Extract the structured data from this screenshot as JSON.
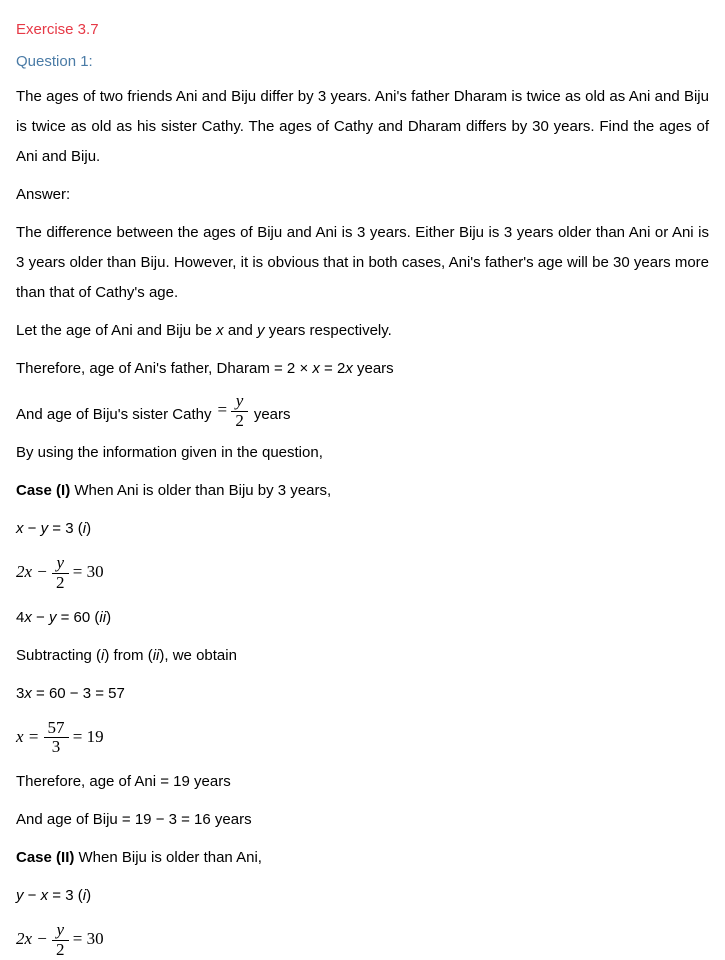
{
  "exercise": "Exercise 3.7",
  "question_label": "Question 1:",
  "question_text": "The ages of two friends Ani and Biju differ by 3 years. Ani's father Dharam is twice as old as Ani and Biju is twice as old as his sister Cathy. The ages of Cathy and Dharam differs by 30 years. Find the ages of Ani and Biju.",
  "answer_label": "Answer:",
  "answer_p1": "The difference between the ages of Biju and Ani is 3 years. Either Biju is 3 years older than Ani or Ani is 3 years older than Biju. However, it is obvious that in both cases, Ani's father's age will be 30 years more than that of Cathy's age.",
  "let_line_a": "Let the age of Ani and Biju be ",
  "let_x": "x",
  "let_and": " and ",
  "let_y": "y",
  "let_line_b": " years respectively.",
  "therefore_a": "Therefore, age of Ani's father, Dharam = 2 × ",
  "therefore_x": "x",
  "therefore_mid": " = 2",
  "therefore_x2": "x",
  "therefore_b": " years",
  "cathy_a": "And age of Biju's sister Cathy ",
  "eq_y": "y",
  "two": "2",
  "cathy_b": " years",
  "info_line": "By using the information given in the question,",
  "case1_label": "Case (I)",
  "case1_text": " When Ani is older than Biju by 3 years,",
  "eq1_x": "x",
  "eq1_mid": " − ",
  "eq1_y": "y",
  "eq1_eq": " = 3 (",
  "eq1_i": "i",
  "eq1_close": ")",
  "eq2_pre": "2x − ",
  "eq2_post": " = 30",
  "eq3_a": "4",
  "eq3_x": "x",
  "eq3_mid": " − ",
  "eq3_y": "y",
  "eq3_b": " = 60 (",
  "eq3_ii": "ii",
  "eq3_close": ")",
  "sub_a": "Subtracting (",
  "sub_i": "i",
  "sub_mid": ") from (",
  "sub_ii": "ii",
  "sub_b": "), we obtain",
  "eq4_a": "3",
  "eq4_x": "x",
  "eq4_b": " = 60 − 3 = 57",
  "eq5_pre": "x = ",
  "eq5_num": "57",
  "eq5_den": "3",
  "eq5_post": " = 19",
  "ani_age": "Therefore, age of Ani = 19 years",
  "biju_age": "And age of Biju = 19 − 3 = 16 years",
  "case2_label": "Case (II)",
  "case2_text": " When Biju is older than Ani,",
  "eq6_y": "y",
  "eq6_mid": " − ",
  "eq6_x": "x",
  "eq6_b": " = 3 (",
  "eq6_i": "i",
  "eq6_close": ")",
  "eq7_pre": "2x − ",
  "eq7_post": " = 30"
}
